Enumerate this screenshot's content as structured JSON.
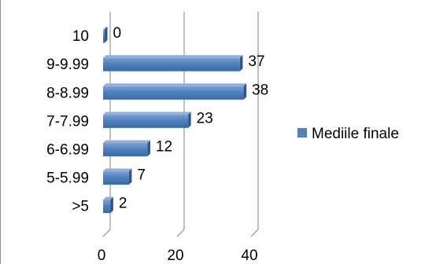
{
  "chart_data": {
    "type": "bar",
    "orientation": "horizontal",
    "style": "3d",
    "categories": [
      ">5",
      "5-5.99",
      "6-6.99",
      "7-7.99",
      "8-8.99",
      "9-9.99",
      "10"
    ],
    "series": [
      {
        "name": "Mediile finale",
        "values": [
          2,
          7,
          12,
          23,
          38,
          37,
          0
        ],
        "color": "#4f81bd"
      }
    ],
    "xlim": [
      0,
      40
    ],
    "x_ticks": [
      "0",
      "20",
      "40"
    ],
    "grid": true,
    "legend": "right",
    "data_labels": true,
    "title": "",
    "xlabel": "",
    "ylabel": ""
  }
}
